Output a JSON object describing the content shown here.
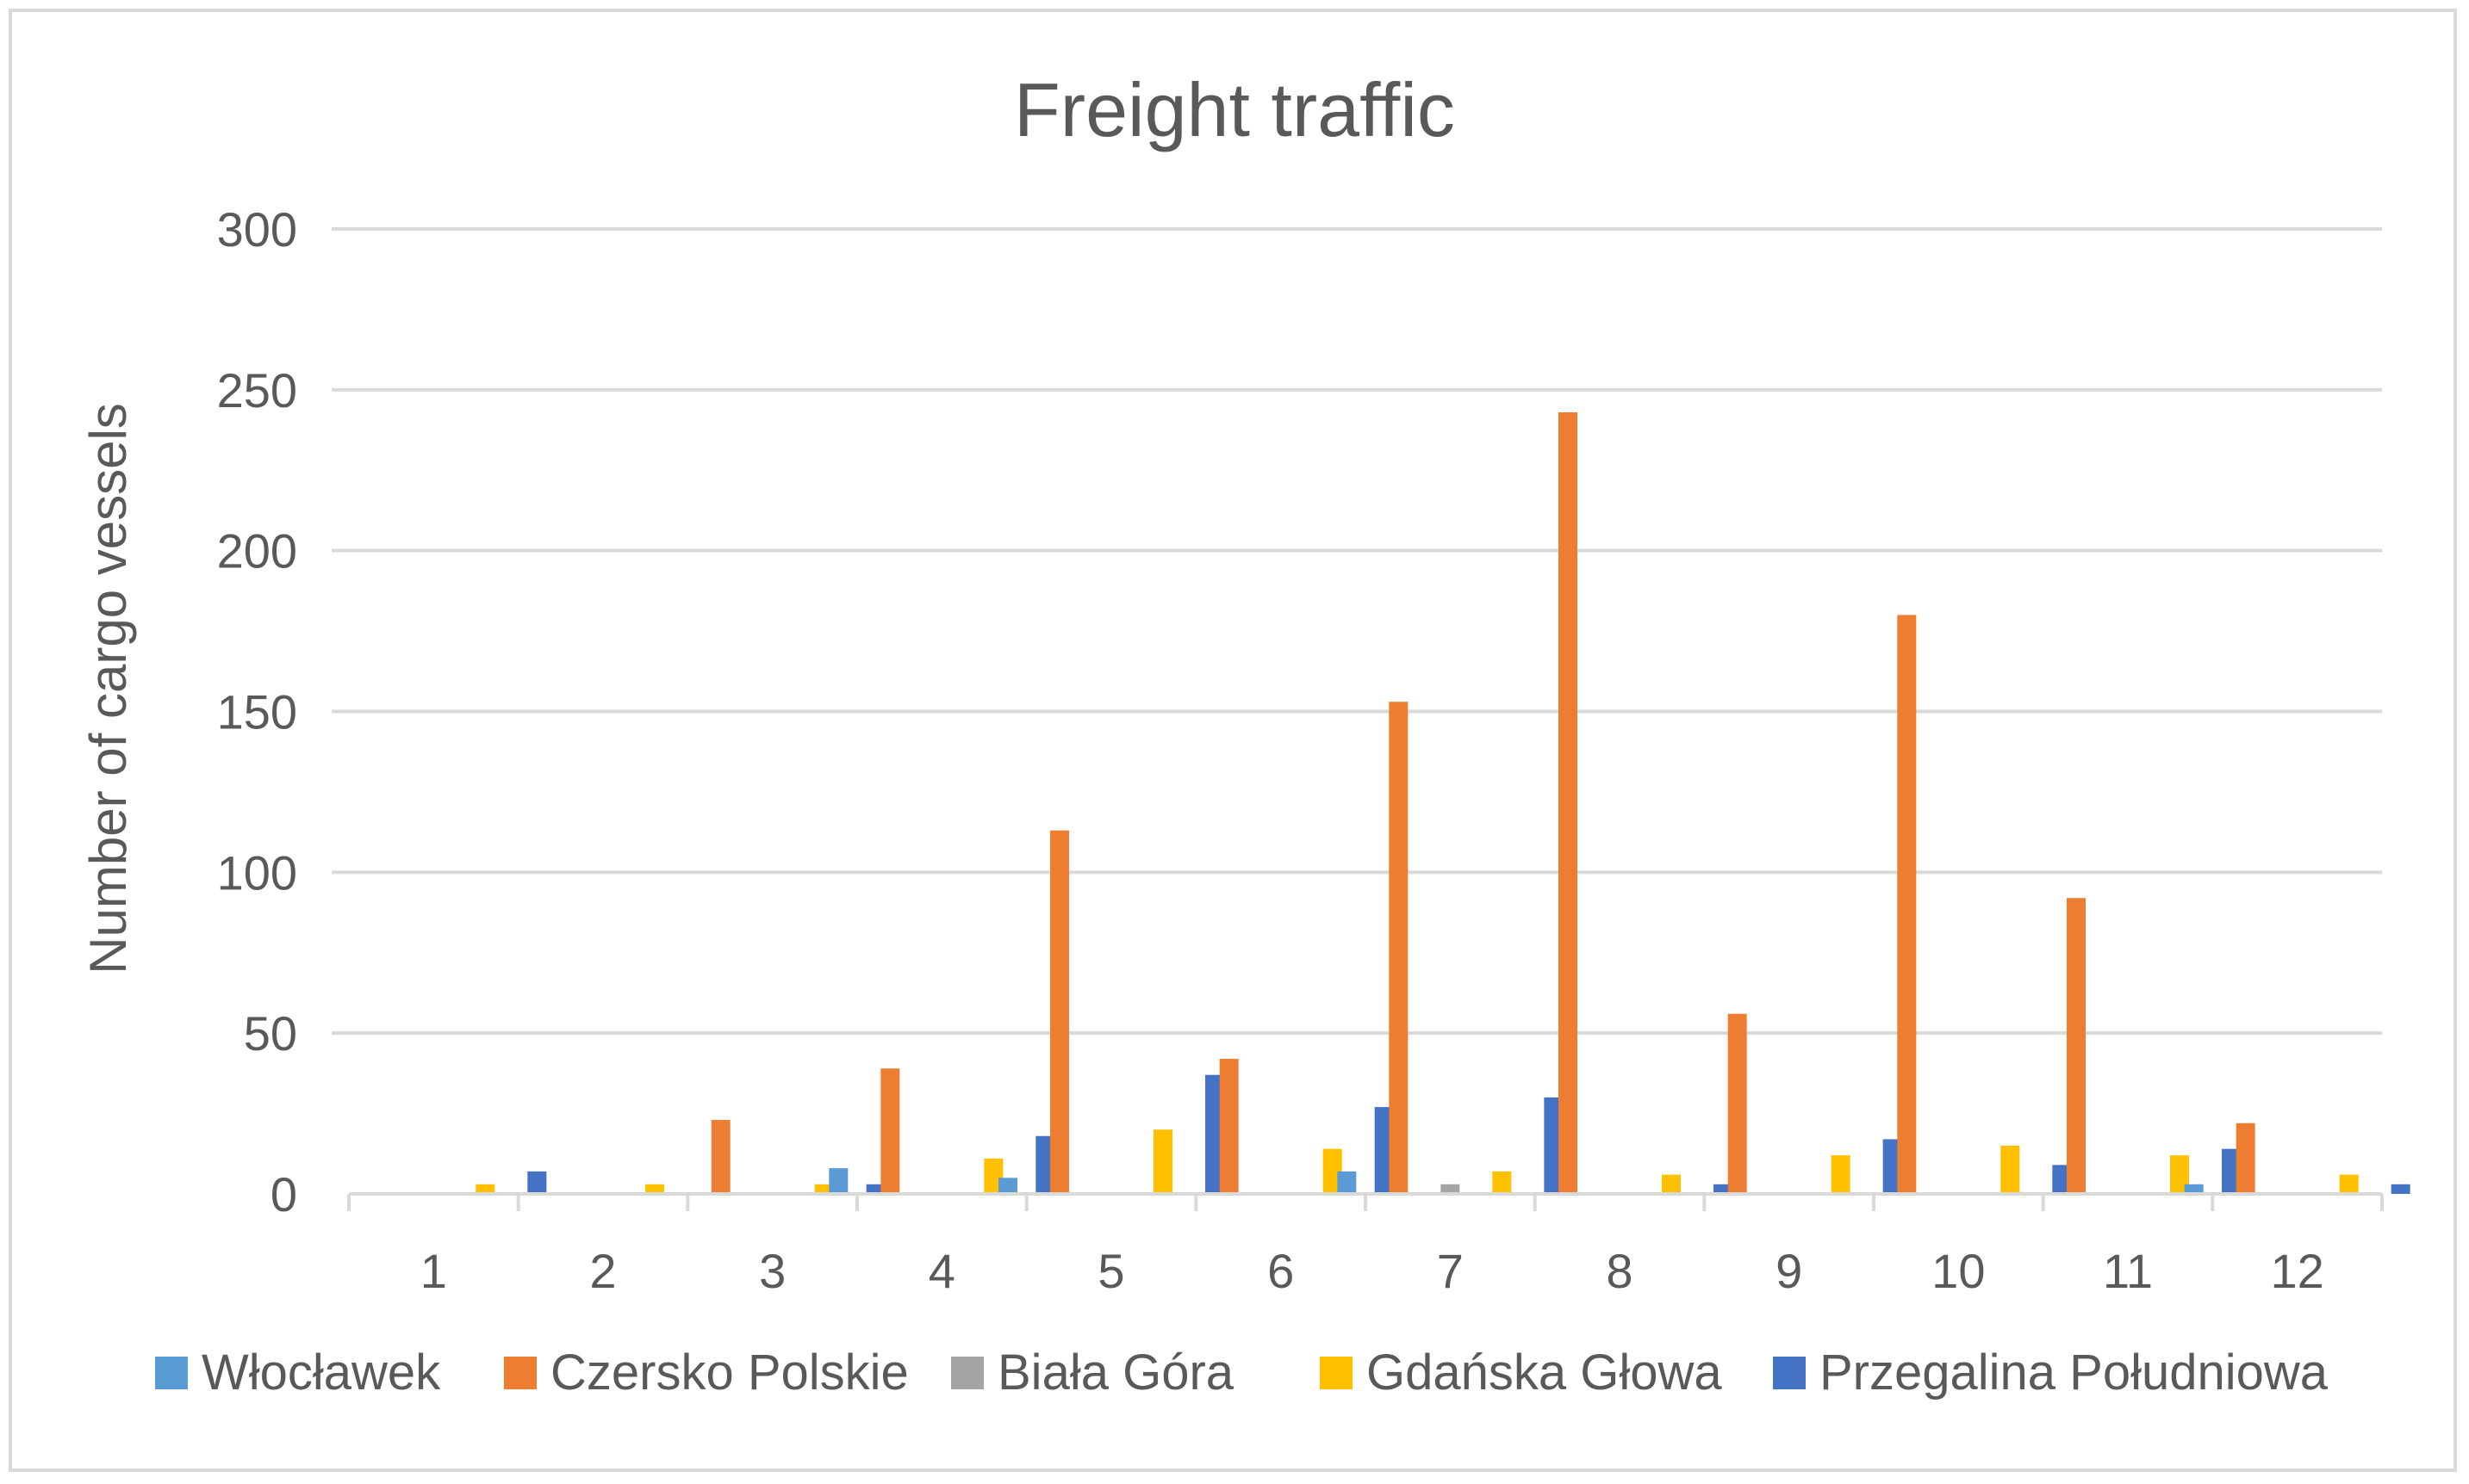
{
  "chart_data": {
    "type": "bar",
    "title": "Freight traffic",
    "xlabel": "",
    "ylabel": "Number of cargo vessels",
    "ylim": [
      0,
      300
    ],
    "yticks": [
      0,
      50,
      100,
      150,
      200,
      250,
      300
    ],
    "categories": [
      "1",
      "2",
      "3",
      "4",
      "5",
      "6",
      "7",
      "8",
      "9",
      "10",
      "11",
      "12"
    ],
    "grid": true,
    "legend_position": "bottom",
    "series": [
      {
        "name": "Włocławek",
        "color": "#5b9bd5",
        "values": [
          0,
          0,
          0,
          8,
          5,
          0,
          7,
          0,
          0,
          0,
          0,
          3
        ]
      },
      {
        "name": "Czersko Polskie",
        "color": "#ed7d31",
        "values": [
          0,
          0,
          23,
          39,
          113,
          42,
          153,
          243,
          56,
          180,
          92,
          22
        ]
      },
      {
        "name": "Biała Góra",
        "color": "#a5a5a5",
        "values": [
          0,
          0,
          0,
          0,
          0,
          0,
          3,
          0,
          0,
          0,
          0,
          0
        ]
      },
      {
        "name": "Gdańska Głowa",
        "color": "#ffc000",
        "values": [
          3,
          3,
          3,
          11,
          20,
          14,
          7,
          6,
          12,
          15,
          12,
          6
        ]
      },
      {
        "name": "Przegalina Południowa",
        "color": "#4472c4",
        "values": [
          7,
          0,
          3,
          18,
          37,
          27,
          30,
          3,
          17,
          9,
          14,
          3
        ]
      }
    ]
  }
}
